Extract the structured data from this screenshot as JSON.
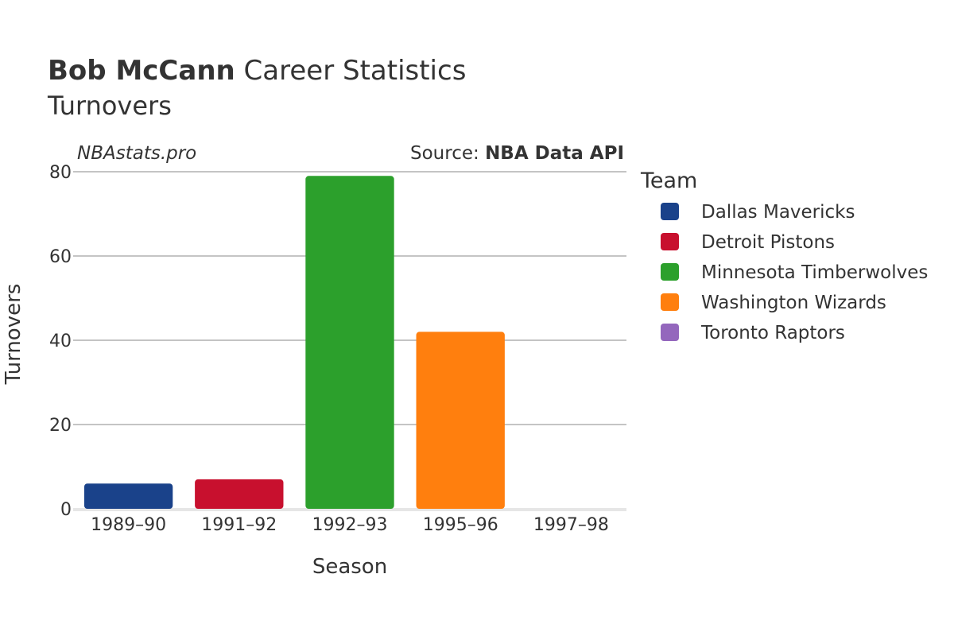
{
  "title": {
    "bold": "Bob McCann",
    "rest": " Career Statistics",
    "subtitle": "Turnovers"
  },
  "watermark": "NBAstats.pro",
  "source": {
    "prefix": "Source: ",
    "name": "NBA Data API"
  },
  "legend": {
    "title": "Team",
    "items": [
      {
        "name": "Dallas Mavericks",
        "color": "#1a428a"
      },
      {
        "name": "Detroit Pistons",
        "color": "#c8102e"
      },
      {
        "name": "Minnesota Timberwolves",
        "color": "#2ca02c"
      },
      {
        "name": "Washington Wizards",
        "color": "#ff7f0e"
      },
      {
        "name": "Toronto Raptors",
        "color": "#9467bd"
      }
    ]
  },
  "chart_data": {
    "type": "bar",
    "title": "Bob McCann Career Statistics",
    "subtitle": "Turnovers",
    "xlabel": "Season",
    "ylabel": "Turnovers",
    "ylim": [
      0,
      80
    ],
    "yticks": [
      0,
      20,
      40,
      60,
      80
    ],
    "grid": true,
    "categories": [
      "1989–90",
      "1991–92",
      "1992–93",
      "1995–96",
      "1997–98"
    ],
    "values": [
      6,
      7,
      79,
      42,
      0
    ],
    "teams": [
      "Dallas Mavericks",
      "Detroit Pistons",
      "Minnesota Timberwolves",
      "Washington Wizards",
      "Toronto Raptors"
    ],
    "colors": [
      "#1a428a",
      "#c8102e",
      "#2ca02c",
      "#ff7f0e",
      "#9467bd"
    ],
    "legend_position": "right"
  }
}
